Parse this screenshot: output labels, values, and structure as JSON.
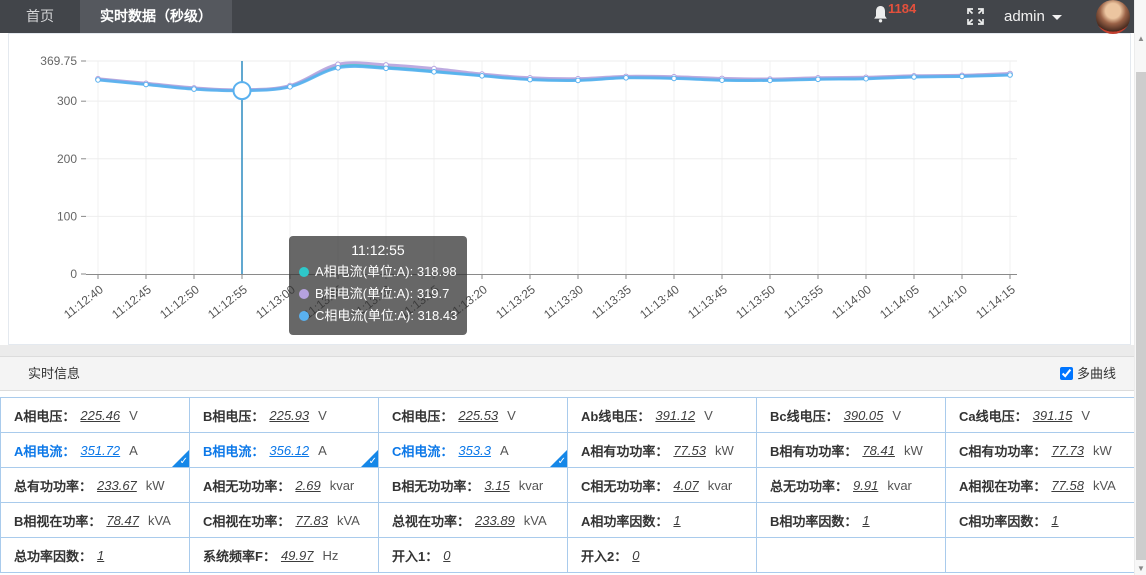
{
  "navbar": {
    "tabs": [
      {
        "label": "首页",
        "active": false
      },
      {
        "label": "实时数据（秒级）",
        "active": true
      }
    ],
    "badge": "1184",
    "user": "admin",
    "icons": [
      "bell-icon",
      "fullscreen-icon",
      "chevron-down-icon",
      "avatar"
    ]
  },
  "chart_data": {
    "type": "line",
    "x": [
      "11:12:40",
      "11:12:45",
      "11:12:50",
      "11:12:55",
      "11:13:00",
      "11:13:05",
      "11:13:10",
      "11:13:15",
      "11:13:20",
      "11:13:25",
      "11:13:30",
      "11:13:35",
      "11:13:40",
      "11:13:45",
      "11:13:50",
      "11:13:55",
      "11:14:00",
      "11:14:05",
      "11:14:10",
      "11:14:15"
    ],
    "ylim": [
      0,
      369.75
    ],
    "yticks": [
      0,
      100,
      200,
      300,
      369.75
    ],
    "grid": true,
    "legend_position": "none",
    "series": [
      {
        "name": "A相电流(单位:A)",
        "color": "#2ec7c9",
        "values": [
          338,
          330,
          322,
          318.98,
          326,
          360,
          358.5,
          352,
          345,
          338.5,
          337,
          341.5,
          340.5,
          337.5,
          337,
          339,
          340,
          343,
          344,
          346
        ]
      },
      {
        "name": "B相电流(单位:A)",
        "color": "#b6a2de",
        "values": [
          339,
          331,
          323,
          319.7,
          327,
          364,
          363,
          356.5,
          347,
          340.5,
          339,
          343,
          342.5,
          339.5,
          338.5,
          340.5,
          341.5,
          344,
          345,
          348
        ]
      },
      {
        "name": "C相电流(单位:A)",
        "color": "#5ab1ef",
        "values": [
          337,
          329,
          321,
          318.43,
          325,
          358,
          357,
          351,
          344,
          337.5,
          336,
          340.5,
          339.5,
          336.5,
          336,
          338,
          339,
          342,
          343,
          345.5
        ]
      }
    ],
    "tooltip": {
      "time": "11:12:55",
      "index": 3,
      "entries": [
        {
          "series": "A相电流(单位:A)",
          "value": "318.98"
        },
        {
          "series": "B相电流(单位:A)",
          "value": "319.7"
        },
        {
          "series": "C相电流(单位:A)",
          "value": "318.43"
        }
      ]
    },
    "pointer_color": "#2d8cc0"
  },
  "panel": {
    "title": "实时信息",
    "checkbox_label": "多曲线",
    "checkbox_checked": "checked"
  },
  "table": {
    "rows": [
      [
        {
          "label": "A相电压：",
          "value": "225.46",
          "unit": "V"
        },
        {
          "label": "B相电压：",
          "value": "225.93",
          "unit": "V"
        },
        {
          "label": "C相电压：",
          "value": "225.53",
          "unit": "V"
        },
        {
          "label": "Ab线电压：",
          "value": "391.12",
          "unit": "V"
        },
        {
          "label": "Bc线电压：",
          "value": "390.05",
          "unit": "V"
        },
        {
          "label": "Ca线电压：",
          "value": "391.15",
          "unit": "V"
        }
      ],
      [
        {
          "label": "A相电流：",
          "value": "351.72",
          "unit": "A",
          "selected": true
        },
        {
          "label": "B相电流：",
          "value": "356.12",
          "unit": "A",
          "selected": true
        },
        {
          "label": "C相电流：",
          "value": "353.3",
          "unit": "A",
          "selected": true
        },
        {
          "label": "A相有功功率：",
          "value": "77.53",
          "unit": "kW"
        },
        {
          "label": "B相有功功率：",
          "value": "78.41",
          "unit": "kW"
        },
        {
          "label": "C相有功功率：",
          "value": "77.73",
          "unit": "kW"
        }
      ],
      [
        {
          "label": "总有功功率：",
          "value": "233.67",
          "unit": "kW"
        },
        {
          "label": "A相无功功率：",
          "value": "2.69",
          "unit": "kvar"
        },
        {
          "label": "B相无功功率：",
          "value": "3.15",
          "unit": "kvar"
        },
        {
          "label": "C相无功功率：",
          "value": "4.07",
          "unit": "kvar"
        },
        {
          "label": "总无功功率：",
          "value": "9.91",
          "unit": "kvar"
        },
        {
          "label": "A相视在功率：",
          "value": "77.58",
          "unit": "kVA"
        }
      ],
      [
        {
          "label": "B相视在功率：",
          "value": "78.47",
          "unit": "kVA"
        },
        {
          "label": "C相视在功率：",
          "value": "77.83",
          "unit": "kVA"
        },
        {
          "label": "总视在功率：",
          "value": "233.89",
          "unit": "kVA"
        },
        {
          "label": "A相功率因数：",
          "value": "1",
          "unit": ""
        },
        {
          "label": "B相功率因数：",
          "value": "1",
          "unit": ""
        },
        {
          "label": "C相功率因数：",
          "value": "1",
          "unit": ""
        }
      ],
      [
        {
          "label": "总功率因数：",
          "value": "1",
          "unit": ""
        },
        {
          "label": "系统频率F：",
          "value": "49.97",
          "unit": "Hz"
        },
        {
          "label": "开入1：",
          "value": "0",
          "unit": ""
        },
        {
          "label": "开入2：",
          "value": "0",
          "unit": ""
        },
        null,
        null
      ]
    ]
  },
  "colors": {
    "navbar_bg": "#42454a",
    "tab_active_bg": "#55585e",
    "badge_text": "#e4503c",
    "selected_cell": "#0c78e8",
    "table_border": "#a9cbec"
  }
}
